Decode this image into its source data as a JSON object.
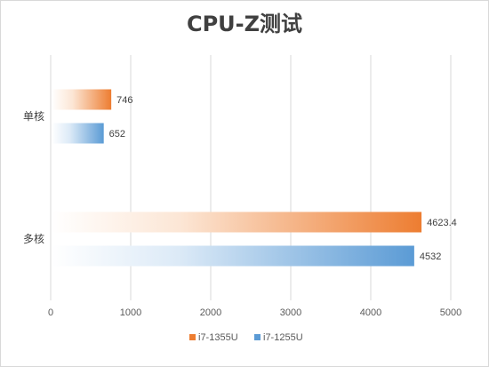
{
  "chart_data": {
    "type": "bar",
    "orientation": "horizontal",
    "title": "CPU-Z测试",
    "categories": [
      "单核",
      "多核"
    ],
    "series": [
      {
        "name": "i7-1355U",
        "values": [
          746,
          4623.4
        ],
        "labels": [
          "746",
          "4623.4"
        ],
        "color": "#ED7D31",
        "light_color": "#FCE6D5"
      },
      {
        "name": "i7-1255U",
        "values": [
          652,
          4532
        ],
        "labels": [
          "652",
          "4532"
        ],
        "color": "#5B9BD5",
        "light_color": "#DCEAF7"
      }
    ],
    "xlim": [
      0,
      5000
    ],
    "xticks": [
      "0",
      "1000",
      "2000",
      "3000",
      "4000",
      "5000"
    ],
    "grid": true,
    "legend_position": "bottom"
  }
}
